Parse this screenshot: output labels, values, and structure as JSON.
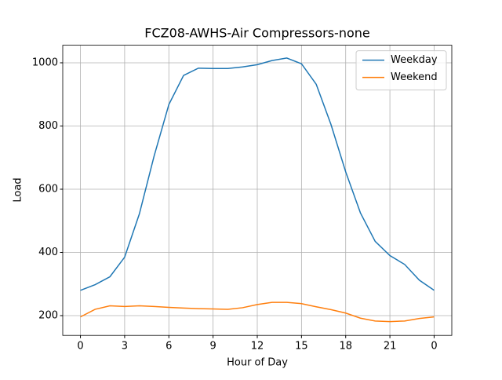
{
  "chart_data": {
    "type": "line",
    "title": "FCZ08-AWHS-Air Compressors-none",
    "x_label": "Hour of Day",
    "y_label": "Load",
    "x": [
      0,
      1,
      2,
      3,
      4,
      5,
      6,
      7,
      8,
      9,
      10,
      11,
      12,
      13,
      14,
      15,
      16,
      17,
      18,
      19,
      20,
      21,
      22,
      23,
      24
    ],
    "series": [
      {
        "name": "Weekday",
        "color": "#1f77b4",
        "values": [
          280,
          298,
          323,
          385,
          522,
          705,
          868,
          960,
          983,
          982,
          982,
          987,
          994,
          1007,
          1015,
          997,
          932,
          805,
          655,
          525,
          435,
          390,
          362,
          312,
          280
        ]
      },
      {
        "name": "Weekend",
        "color": "#ff7f0e",
        "values": [
          196,
          220,
          231,
          229,
          231,
          229,
          226,
          224,
          222,
          221,
          220,
          225,
          235,
          242,
          242,
          238,
          228,
          219,
          208,
          192,
          183,
          181,
          183,
          191,
          196
        ]
      }
    ],
    "xlim": [
      -1.2,
      25.2
    ],
    "xticks": [
      0,
      3,
      6,
      9,
      12,
      15,
      18,
      21,
      {
        "value": 24,
        "label": "0"
      }
    ],
    "ylim": [
      137.4,
      1055.6
    ],
    "yticks": [
      200,
      400,
      600,
      800,
      1000
    ],
    "grid": true,
    "legend": "upper right"
  }
}
